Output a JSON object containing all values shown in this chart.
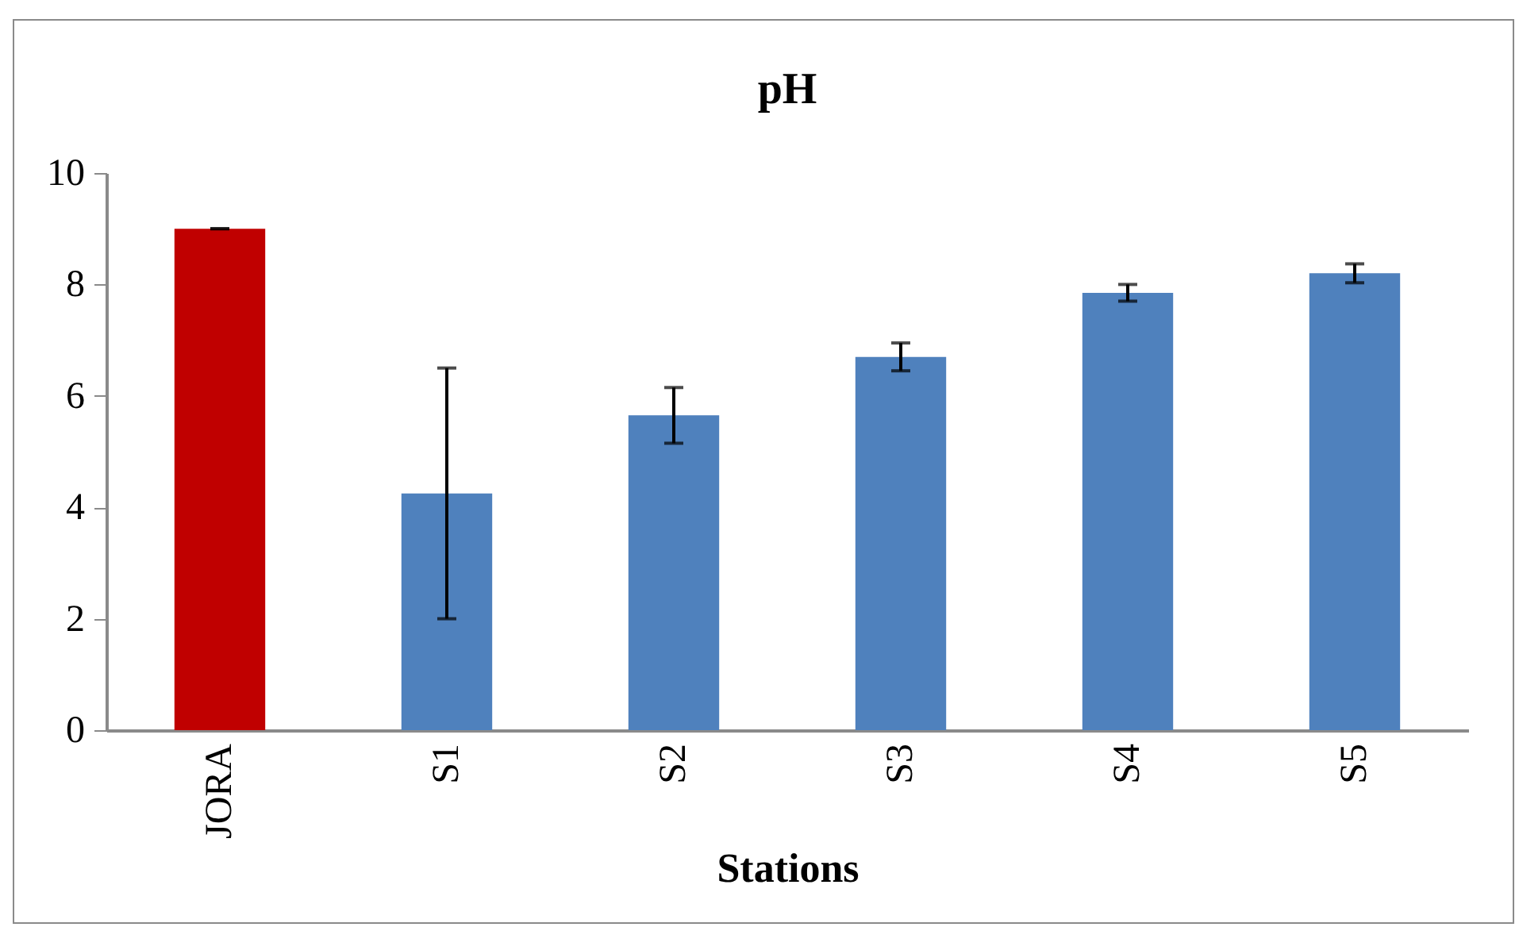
{
  "chart_data": {
    "type": "bar",
    "title": "pH",
    "xlabel": "Stations",
    "categories": [
      "JORA",
      "S1",
      "S2",
      "S3",
      "S4",
      "S5"
    ],
    "values": [
      9.0,
      4.25,
      5.65,
      6.7,
      7.85,
      8.2
    ],
    "errors": [
      0,
      2.25,
      0.5,
      0.25,
      0.15,
      0.17
    ],
    "colors": [
      "#c00000",
      "#4f81bd",
      "#4f81bd",
      "#4f81bd",
      "#4f81bd",
      "#4f81bd"
    ],
    "ylim": [
      0,
      10
    ],
    "yticks": [
      0,
      2,
      4,
      6,
      8,
      10
    ],
    "grid": false,
    "legend": false
  }
}
